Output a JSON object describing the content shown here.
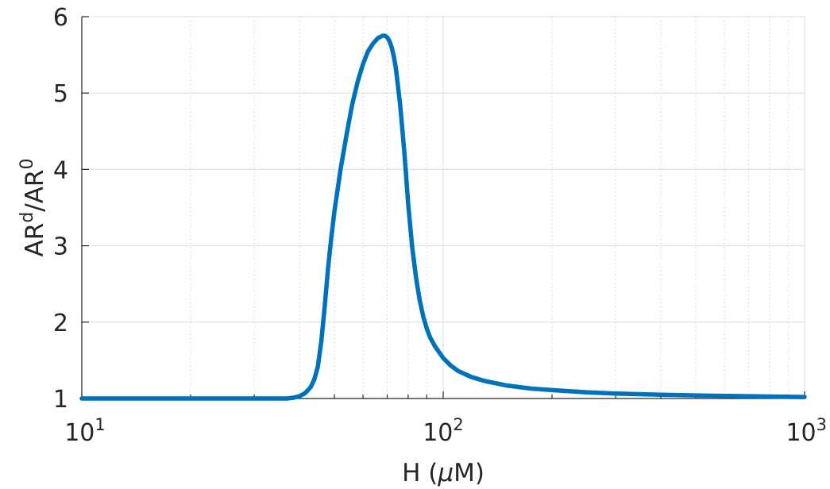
{
  "chart_data": {
    "type": "line",
    "xscale": "log",
    "xlim": [
      10,
      1000
    ],
    "ylim": [
      1,
      6
    ],
    "grid": true,
    "xlabel": {
      "base": "H (",
      "symbol": "μ",
      "rest": "M)"
    },
    "ylabel": {
      "part1": "AR",
      "sup1": "d",
      "part2": "/AR",
      "sup2": "0"
    },
    "xticks": [
      {
        "value": 10,
        "base": "10",
        "exp": "1"
      },
      {
        "value": 100,
        "base": "10",
        "exp": "2"
      },
      {
        "value": 1000,
        "base": "10",
        "exp": "3"
      }
    ],
    "yticks": [
      {
        "value": 1,
        "label": "1"
      },
      {
        "value": 2,
        "label": "2"
      },
      {
        "value": 3,
        "label": "3"
      },
      {
        "value": 4,
        "label": "4"
      },
      {
        "value": 5,
        "label": "5"
      },
      {
        "value": 6,
        "label": "6"
      }
    ],
    "series": [
      {
        "color": "#0072BD",
        "x": [
          10,
          20,
          30,
          35,
          37,
          38.5,
          40,
          41.5,
          43,
          44,
          45,
          46,
          47,
          48,
          49,
          50,
          52,
          54,
          56,
          58,
          60,
          62,
          64,
          66,
          68,
          69,
          70,
          71,
          72,
          73,
          74,
          76,
          78,
          80,
          82,
          84,
          86,
          88,
          90,
          92,
          95,
          100,
          105,
          110,
          120,
          130,
          150,
          175,
          200,
          250,
          300,
          400,
          500,
          700,
          1000
        ],
        "y": [
          1.0,
          1.0,
          1.0,
          1.0,
          1.0,
          1.01,
          1.03,
          1.07,
          1.15,
          1.25,
          1.42,
          1.75,
          2.2,
          2.7,
          3.1,
          3.45,
          4.0,
          4.45,
          4.85,
          5.15,
          5.38,
          5.55,
          5.65,
          5.72,
          5.75,
          5.75,
          5.73,
          5.68,
          5.6,
          5.48,
          5.32,
          4.85,
          4.25,
          3.55,
          3.0,
          2.6,
          2.3,
          2.08,
          1.92,
          1.8,
          1.68,
          1.53,
          1.43,
          1.36,
          1.28,
          1.23,
          1.17,
          1.13,
          1.11,
          1.08,
          1.065,
          1.05,
          1.04,
          1.03,
          1.02
        ]
      }
    ]
  }
}
